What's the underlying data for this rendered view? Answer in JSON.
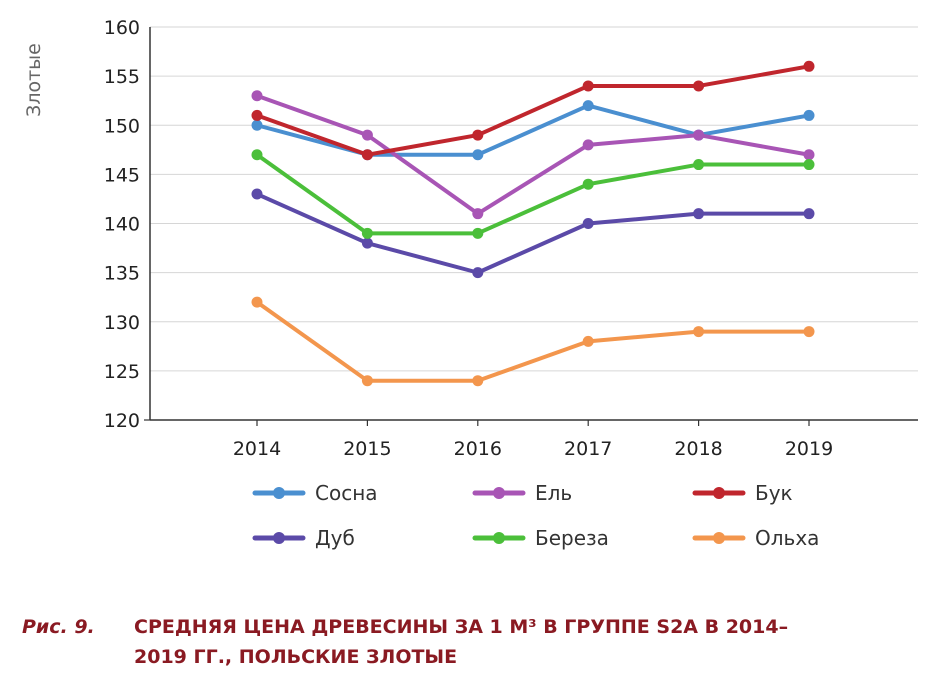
{
  "chart_data": {
    "type": "line",
    "ylabel": "Злотые",
    "xlabel": "",
    "ylim": [
      120,
      160
    ],
    "yticks": [
      120,
      125,
      130,
      135,
      140,
      145,
      150,
      155,
      160
    ],
    "categories": [
      "2014",
      "2015",
      "2016",
      "2017",
      "2018",
      "2019"
    ],
    "grid": true,
    "legend_position": "bottom",
    "series": [
      {
        "name": "Сосна",
        "color": "#4a8fd0",
        "values": [
          150,
          147,
          147,
          152,
          149,
          151
        ]
      },
      {
        "name": "Ель",
        "color": "#a855b5",
        "values": [
          153,
          149,
          141,
          148,
          149,
          147
        ]
      },
      {
        "name": "Бук",
        "color": "#c0262d",
        "values": [
          151,
          147,
          149,
          154,
          154,
          156
        ]
      },
      {
        "name": "Дуб",
        "color": "#5b4aa8",
        "values": [
          143,
          138,
          135,
          140,
          141,
          141
        ]
      },
      {
        "name": "Береза",
        "color": "#4bbf3a",
        "values": [
          147,
          139,
          139,
          144,
          146,
          146
        ]
      },
      {
        "name": "Ольха",
        "color": "#f3964d",
        "values": [
          132,
          124,
          124,
          128,
          129,
          129
        ]
      }
    ]
  },
  "caption": {
    "label": "Рис. 9.",
    "line1": "СРЕДНЯЯ ЦЕНА ДРЕВЕСИНЫ ЗА 1 М³ В ГРУППЕ S2A В 2014–",
    "line2": "2019 ГГ., ПОЛЬСКИЕ ЗЛОТЫЕ"
  }
}
